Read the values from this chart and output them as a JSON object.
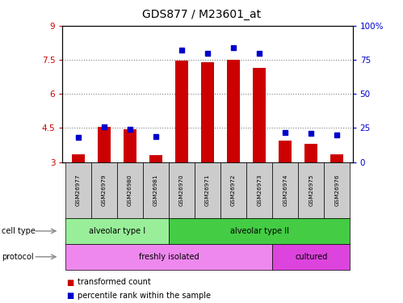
{
  "title": "GDS877 / M23601_at",
  "samples": [
    "GSM26977",
    "GSM26979",
    "GSM26980",
    "GSM26981",
    "GSM26970",
    "GSM26971",
    "GSM26972",
    "GSM26973",
    "GSM26974",
    "GSM26975",
    "GSM26976"
  ],
  "transformed_count": [
    3.35,
    4.55,
    4.45,
    3.3,
    7.45,
    7.4,
    7.5,
    7.15,
    3.95,
    3.8,
    3.35
  ],
  "percentile_rank": [
    18,
    26,
    24,
    19,
    82,
    80,
    84,
    80,
    22,
    21,
    20
  ],
  "ylim_left": [
    3,
    9
  ],
  "ylim_right": [
    0,
    100
  ],
  "yticks_left": [
    3,
    4.5,
    6,
    7.5,
    9
  ],
  "yticks_right": [
    0,
    25,
    50,
    75,
    100
  ],
  "ytick_labels_left": [
    "3",
    "4.5",
    "6",
    "7.5",
    "9"
  ],
  "ytick_labels_right": [
    "0",
    "25",
    "50",
    "75",
    "100%"
  ],
  "hlines": [
    4.5,
    6.0,
    7.5
  ],
  "cell_type_groups": [
    {
      "label": "alveolar type I",
      "start": 0,
      "end": 3,
      "color": "#99EE99"
    },
    {
      "label": "alveolar type II",
      "start": 4,
      "end": 10,
      "color": "#44CC44"
    }
  ],
  "protocol_groups": [
    {
      "label": "freshly isolated",
      "start": 0,
      "end": 7,
      "color": "#EE88EE"
    },
    {
      "label": "cultured",
      "start": 8,
      "end": 10,
      "color": "#DD44DD"
    }
  ],
  "bar_color": "#CC0000",
  "dot_color": "#0000CC",
  "background_color": "#FFFFFF",
  "cell_type_label": "cell type",
  "protocol_label": "protocol",
  "legend_items": [
    {
      "label": "transformed count",
      "color": "#CC0000"
    },
    {
      "label": "percentile rank within the sample",
      "color": "#0000CC"
    }
  ]
}
